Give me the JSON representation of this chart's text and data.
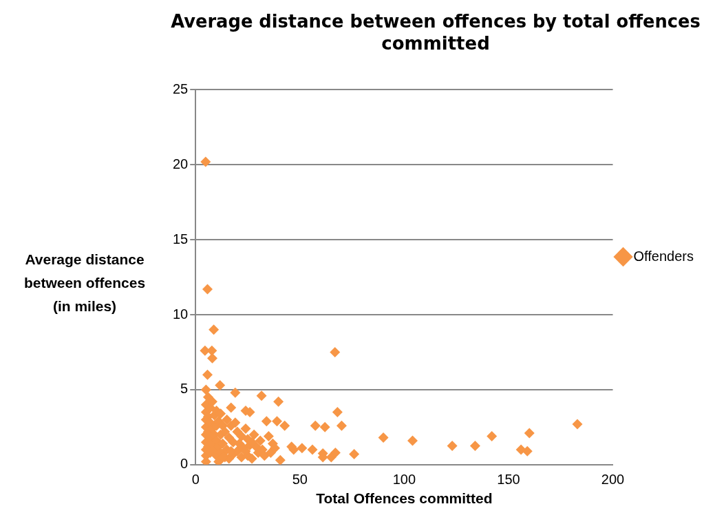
{
  "chart_data": {
    "type": "scatter",
    "title": "Average distance between offences by total offences committed",
    "xlabel": "Total Offences committed",
    "ylabel": "Average distance between offences (in miles)",
    "xlim": [
      0,
      200
    ],
    "xticks": [
      0,
      50,
      100,
      150,
      200
    ],
    "ylim": [
      0,
      25
    ],
    "yticks": [
      0,
      5,
      10,
      15,
      20,
      25
    ],
    "grid": "y",
    "legend": "right",
    "marker": "diamond",
    "series": [
      {
        "name": "Offenders",
        "color": "#f79646",
        "x": [
          4.8,
          5.7,
          8.7,
          4.5,
          7.8,
          8,
          5.7,
          11.7,
          19,
          31.6,
          39.7,
          66.8,
          68,
          57.4,
          62,
          70,
          34,
          39,
          42.7,
          90,
          104,
          123,
          134,
          142,
          156,
          159,
          160,
          183,
          76,
          67,
          65,
          61,
          61,
          56,
          51,
          47,
          46,
          40.6,
          5,
          5,
          5,
          5,
          5,
          5,
          5,
          5,
          5,
          5,
          6,
          6,
          6,
          6,
          7,
          7,
          7,
          7,
          8,
          8,
          8,
          9,
          9,
          9,
          10,
          10,
          10,
          10,
          11,
          11,
          11,
          12,
          12,
          12,
          13,
          13,
          14,
          14,
          15,
          15,
          16,
          16,
          17,
          17,
          18,
          18,
          19,
          20,
          20,
          21,
          22,
          22,
          23,
          24,
          24,
          25,
          25,
          26,
          26,
          27,
          28,
          29,
          30,
          31,
          32,
          33,
          35,
          36,
          37,
          38,
          24,
          27,
          17,
          13
        ],
        "values": [
          20.2,
          11.7,
          9.0,
          7.6,
          7.6,
          7.1,
          6.0,
          5.3,
          4.8,
          4.6,
          4.2,
          7.5,
          3.5,
          2.6,
          2.5,
          2.6,
          2.9,
          2.9,
          2.6,
          1.8,
          1.6,
          1.25,
          1.25,
          1.9,
          1.0,
          0.9,
          2.1,
          2.7,
          0.7,
          0.8,
          0.5,
          0.75,
          0.5,
          1.0,
          1.1,
          1.0,
          1.2,
          0.3,
          0.2,
          0.6,
          1.0,
          1.5,
          2.0,
          2.5,
          3.0,
          3.5,
          4.0,
          5.0,
          1.2,
          2.2,
          3.2,
          4.5,
          0.8,
          1.8,
          2.8,
          3.8,
          1.4,
          2.4,
          4.2,
          1.0,
          2.0,
          3.3,
          0.6,
          1.6,
          2.6,
          3.6,
          0.2,
          1.2,
          2.9,
          0.8,
          2.0,
          3.4,
          1.4,
          2.6,
          0.5,
          2.2,
          1.0,
          3.0,
          0.4,
          1.8,
          2.6,
          3.8,
          0.7,
          1.5,
          2.8,
          0.9,
          2.2,
          1.4,
          0.5,
          1.9,
          1.1,
          2.4,
          3.6,
          0.6,
          1.7,
          1.3,
          3.5,
          0.4,
          2.0,
          1.2,
          0.8,
          1.6,
          1.0,
          0.6,
          1.9,
          0.8,
          1.4,
          1.1,
          0.9,
          1.5,
          0.9,
          0.5
        ]
      }
    ]
  }
}
